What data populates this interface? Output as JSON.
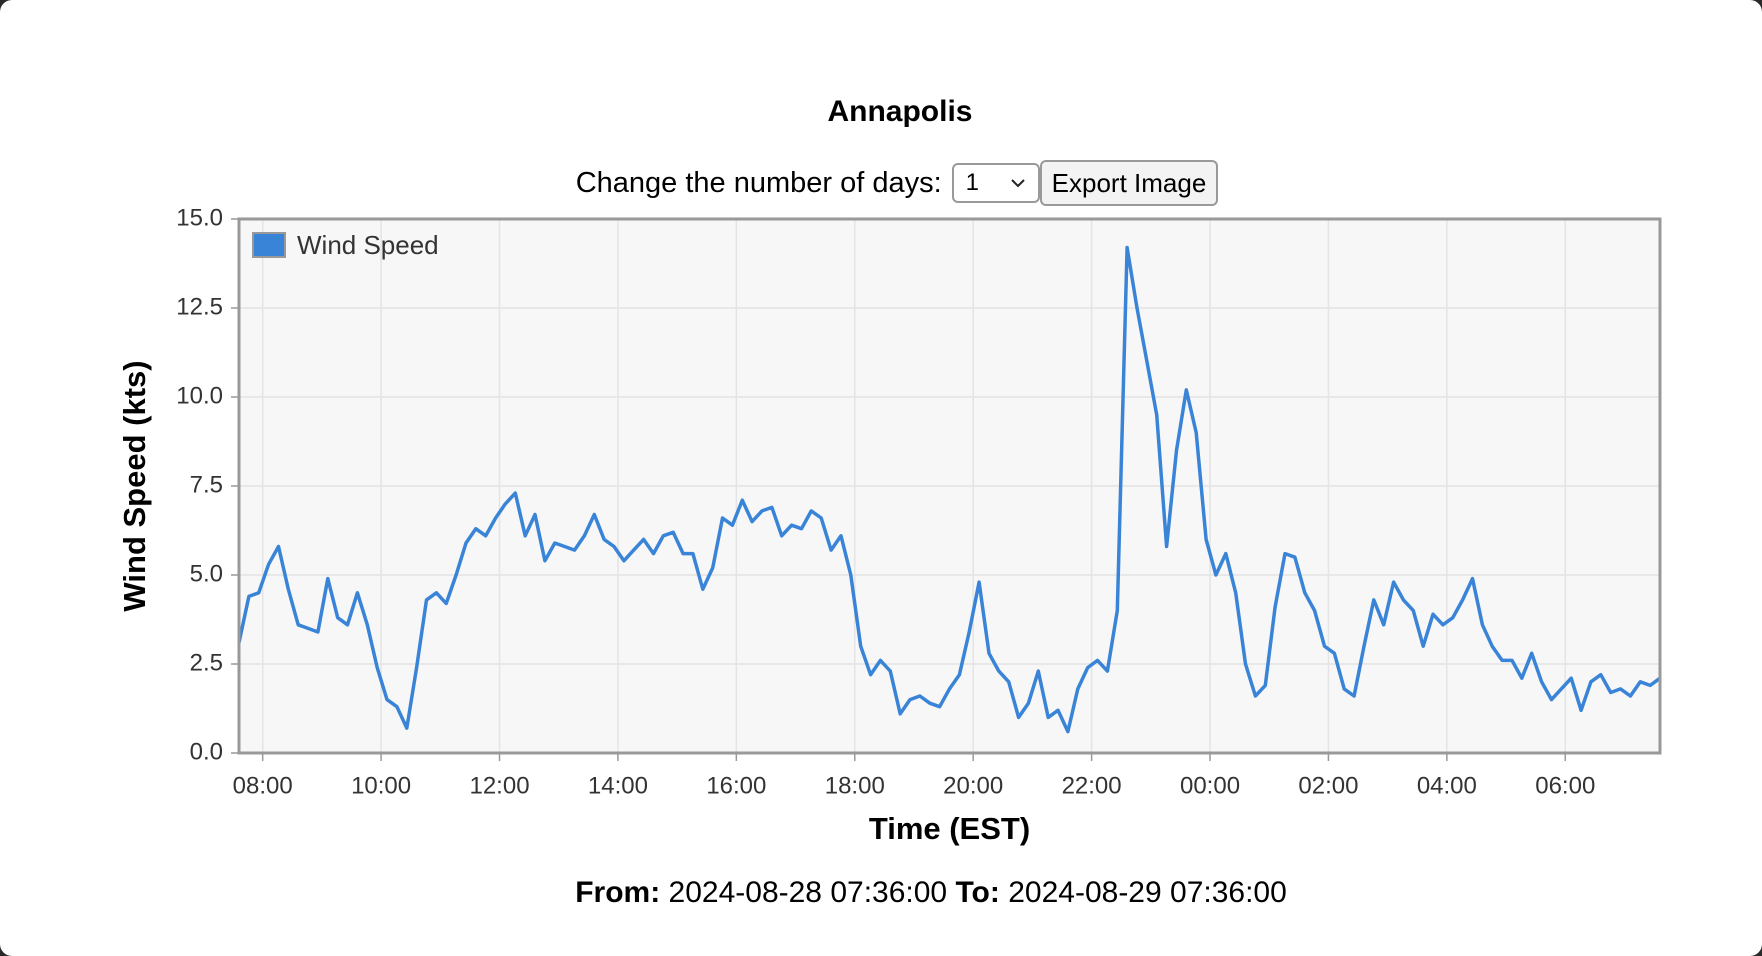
{
  "header": {
    "title": "Annapolis"
  },
  "controls": {
    "label": "Change the number of days:",
    "days": "1",
    "button": "Export Image"
  },
  "footer": {
    "from_label": "From:",
    "from": "2024-08-28 07:36:00",
    "to_label": "To:",
    "to": "2024-08-29 07:36:00"
  },
  "chart_data": {
    "type": "line",
    "x_label": "Time (EST)",
    "y_label": "Wind Speed (kts)",
    "grid": true,
    "legend": "top-left",
    "xlim": [
      "2024-08-28 07:36",
      "2024-08-29 07:36"
    ],
    "xticks": [
      {
        "value": "2024-08-28 08:00",
        "label": "08:00"
      },
      {
        "value": "2024-08-28 10:00",
        "label": "10:00"
      },
      {
        "value": "2024-08-28 12:00",
        "label": "12:00"
      },
      {
        "value": "2024-08-28 14:00",
        "label": "14:00"
      },
      {
        "value": "2024-08-28 16:00",
        "label": "16:00"
      },
      {
        "value": "2024-08-28 18:00",
        "label": "18:00"
      },
      {
        "value": "2024-08-28 20:00",
        "label": "20:00"
      },
      {
        "value": "2024-08-28 22:00",
        "label": "22:00"
      },
      {
        "value": "2024-08-29 00:00",
        "label": "00:00"
      },
      {
        "value": "2024-08-29 02:00",
        "label": "02:00"
      },
      {
        "value": "2024-08-29 04:00",
        "label": "04:00"
      },
      {
        "value": "2024-08-29 06:00",
        "label": "06:00"
      }
    ],
    "ylim": [
      0,
      15
    ],
    "yticks": [
      {
        "value": 0,
        "label": "0.0"
      },
      2.5,
      {
        "value": 5,
        "label": "5.0"
      },
      7.5,
      {
        "value": 10,
        "label": "10.0"
      },
      12.5,
      {
        "value": 15,
        "label": "15.0"
      }
    ],
    "x": [
      "2024-08-28 07:36",
      "2024-08-28 07:46",
      "2024-08-28 07:56",
      "2024-08-28 08:06",
      "2024-08-28 08:16",
      "2024-08-28 08:26",
      "2024-08-28 08:36",
      "2024-08-28 08:46",
      "2024-08-28 08:56",
      "2024-08-28 09:06",
      "2024-08-28 09:16",
      "2024-08-28 09:26",
      "2024-08-28 09:36",
      "2024-08-28 09:46",
      "2024-08-28 09:56",
      "2024-08-28 10:06",
      "2024-08-28 10:16",
      "2024-08-28 10:26",
      "2024-08-28 10:36",
      "2024-08-28 10:46",
      "2024-08-28 10:56",
      "2024-08-28 11:06",
      "2024-08-28 11:16",
      "2024-08-28 11:26",
      "2024-08-28 11:36",
      "2024-08-28 11:46",
      "2024-08-28 11:56",
      "2024-08-28 12:06",
      "2024-08-28 12:16",
      "2024-08-28 12:26",
      "2024-08-28 12:36",
      "2024-08-28 12:46",
      "2024-08-28 12:56",
      "2024-08-28 13:06",
      "2024-08-28 13:16",
      "2024-08-28 13:26",
      "2024-08-28 13:36",
      "2024-08-28 13:46",
      "2024-08-28 13:56",
      "2024-08-28 14:06",
      "2024-08-28 14:16",
      "2024-08-28 14:26",
      "2024-08-28 14:36",
      "2024-08-28 14:46",
      "2024-08-28 14:56",
      "2024-08-28 15:06",
      "2024-08-28 15:16",
      "2024-08-28 15:26",
      "2024-08-28 15:36",
      "2024-08-28 15:46",
      "2024-08-28 15:56",
      "2024-08-28 16:06",
      "2024-08-28 16:16",
      "2024-08-28 16:26",
      "2024-08-28 16:36",
      "2024-08-28 16:46",
      "2024-08-28 16:56",
      "2024-08-28 17:06",
      "2024-08-28 17:16",
      "2024-08-28 17:26",
      "2024-08-28 17:36",
      "2024-08-28 17:46",
      "2024-08-28 17:56",
      "2024-08-28 18:06",
      "2024-08-28 18:16",
      "2024-08-28 18:26",
      "2024-08-28 18:36",
      "2024-08-28 18:46",
      "2024-08-28 18:56",
      "2024-08-28 19:06",
      "2024-08-28 19:16",
      "2024-08-28 19:26",
      "2024-08-28 19:36",
      "2024-08-28 19:46",
      "2024-08-28 19:56",
      "2024-08-28 20:06",
      "2024-08-28 20:16",
      "2024-08-28 20:26",
      "2024-08-28 20:36",
      "2024-08-28 20:46",
      "2024-08-28 20:56",
      "2024-08-28 21:06",
      "2024-08-28 21:16",
      "2024-08-28 21:26",
      "2024-08-28 21:36",
      "2024-08-28 21:46",
      "2024-08-28 21:56",
      "2024-08-28 22:06",
      "2024-08-28 22:16",
      "2024-08-28 22:26",
      "2024-08-28 22:36",
      "2024-08-28 22:46",
      "2024-08-28 22:56",
      "2024-08-28 23:06",
      "2024-08-28 23:16",
      "2024-08-28 23:26",
      "2024-08-28 23:36",
      "2024-08-28 23:46",
      "2024-08-28 23:56",
      "2024-08-29 00:06",
      "2024-08-29 00:16",
      "2024-08-29 00:26",
      "2024-08-29 00:36",
      "2024-08-29 00:46",
      "2024-08-29 00:56",
      "2024-08-29 01:06",
      "2024-08-29 01:16",
      "2024-08-29 01:26",
      "2024-08-29 01:36",
      "2024-08-29 01:46",
      "2024-08-29 01:56",
      "2024-08-29 02:06",
      "2024-08-29 02:16",
      "2024-08-29 02:26",
      "2024-08-29 02:36",
      "2024-08-29 02:46",
      "2024-08-29 02:56",
      "2024-08-29 03:06",
      "2024-08-29 03:16",
      "2024-08-29 03:26",
      "2024-08-29 03:36",
      "2024-08-29 03:46",
      "2024-08-29 03:56",
      "2024-08-29 04:06",
      "2024-08-29 04:16",
      "2024-08-29 04:26",
      "2024-08-29 04:36",
      "2024-08-29 04:46",
      "2024-08-29 04:56",
      "2024-08-29 05:06",
      "2024-08-29 05:16",
      "2024-08-29 05:26",
      "2024-08-29 05:36",
      "2024-08-29 05:46",
      "2024-08-29 05:56",
      "2024-08-29 06:06",
      "2024-08-29 06:16",
      "2024-08-29 06:26",
      "2024-08-29 06:36",
      "2024-08-29 06:46",
      "2024-08-29 06:56",
      "2024-08-29 07:06",
      "2024-08-29 07:16",
      "2024-08-29 07:26",
      "2024-08-29 07:36"
    ],
    "series": [
      {
        "name": "Wind Speed",
        "color": "#3a84d8",
        "values": [
          3.1,
          4.4,
          4.5,
          5.3,
          5.8,
          4.6,
          3.6,
          3.5,
          3.4,
          4.9,
          3.8,
          3.6,
          4.5,
          3.6,
          2.4,
          1.5,
          1.3,
          0.7,
          2.4,
          4.3,
          4.5,
          4.2,
          5.0,
          5.9,
          6.3,
          6.1,
          6.6,
          7.0,
          7.3,
          6.1,
          6.7,
          5.4,
          5.9,
          5.8,
          5.7,
          6.1,
          6.7,
          6.0,
          5.8,
          5.4,
          5.7,
          6.0,
          5.6,
          6.1,
          6.2,
          5.6,
          5.6,
          4.6,
          5.2,
          6.6,
          6.4,
          7.1,
          6.5,
          6.8,
          6.9,
          6.1,
          6.4,
          6.3,
          6.8,
          6.6,
          5.7,
          6.1,
          5.0,
          3.0,
          2.2,
          2.6,
          2.3,
          1.1,
          1.5,
          1.6,
          1.4,
          1.3,
          1.8,
          2.2,
          3.4,
          4.8,
          2.8,
          2.3,
          2.0,
          1.0,
          1.4,
          2.3,
          1.0,
          1.2,
          0.6,
          1.8,
          2.4,
          2.6,
          2.3,
          4.0,
          14.2,
          12.5,
          11.0,
          9.5,
          5.8,
          8.5,
          10.2,
          9.0,
          6.0,
          5.0,
          5.6,
          4.5,
          2.5,
          1.6,
          1.9,
          4.1,
          5.6,
          5.5,
          4.5,
          4.0,
          3.0,
          2.8,
          1.8,
          1.6,
          3.0,
          4.3,
          3.6,
          4.8,
          4.3,
          4.0,
          3.0,
          3.9,
          3.6,
          3.8,
          4.3,
          4.9,
          3.6,
          3.0,
          2.6,
          2.6,
          2.1,
          2.8,
          2.0,
          1.5,
          1.8,
          2.1,
          1.2,
          2.0,
          2.2,
          1.7,
          1.8,
          1.6,
          2.0,
          1.9,
          2.1
        ]
      }
    ]
  }
}
